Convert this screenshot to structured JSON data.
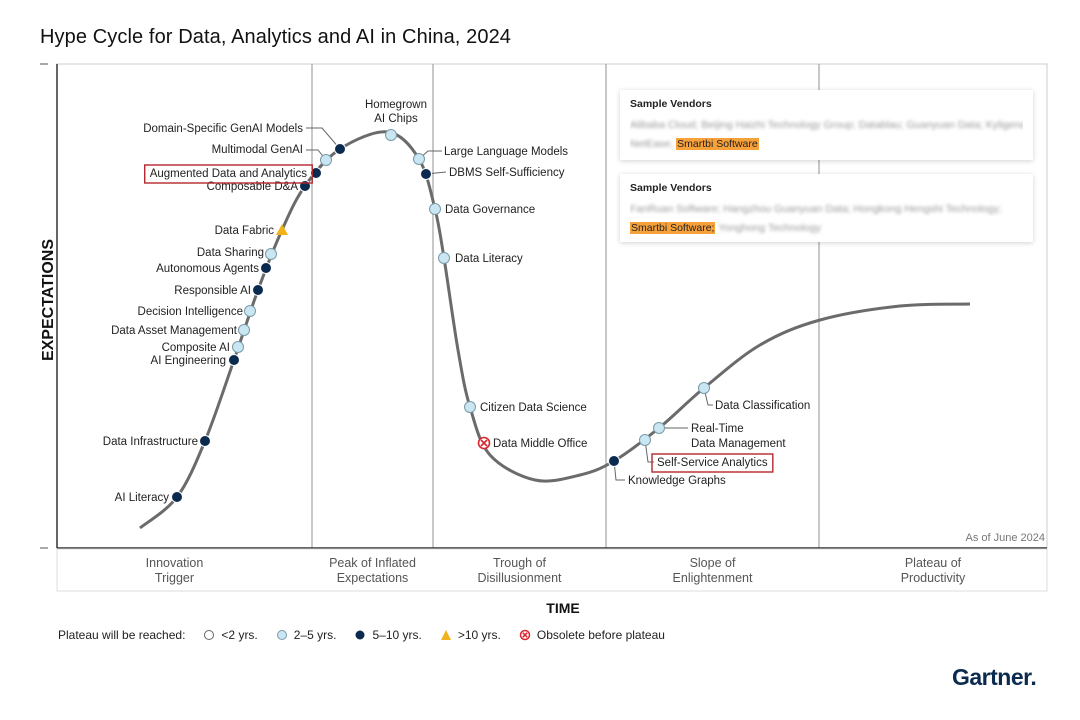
{
  "title": "Hype Cycle for Data, Analytics and AI in China, 2024",
  "y_axis_label": "EXPECTATIONS",
  "x_axis_label": "TIME",
  "as_of": "As of June 2024",
  "phases": [
    {
      "line1": "Innovation",
      "line2": "Trigger"
    },
    {
      "line1": "Peak of Inflated",
      "line2": "Expectations"
    },
    {
      "line1": "Trough of",
      "line2": "Disillusionment"
    },
    {
      "line1": "Slope of",
      "line2": "Enlightenment"
    },
    {
      "line1": "Plateau of",
      "line2": "Productivity"
    }
  ],
  "colors": {
    "lt2": "#ffffff",
    "2to5": "#c9e6f2",
    "5to10": "#0b2a4f",
    "gt10": "#f2b21b",
    "obsolete": "#d9262c",
    "highlight_box": "#b3272d",
    "vendor_highlight": "#f7a13b",
    "curve": "#666666"
  },
  "technologies": [
    {
      "name": "AI Literacy",
      "category": "5-10"
    },
    {
      "name": "Data Infrastructure",
      "category": "5-10"
    },
    {
      "name": "AI Engineering",
      "category": "5-10"
    },
    {
      "name": "Composite AI",
      "category": "2-5"
    },
    {
      "name": "Data Asset Management",
      "category": "2-5"
    },
    {
      "name": "Decision Intelligence",
      "category": "2-5"
    },
    {
      "name": "Responsible AI",
      "category": "5-10"
    },
    {
      "name": "Autonomous Agents",
      "category": "5-10"
    },
    {
      "name": "Data Sharing",
      "category": "2-5"
    },
    {
      "name": "Data Fabric",
      "category": ">10"
    },
    {
      "name": "Composable D&A",
      "category": "5-10"
    },
    {
      "name": "Augmented Data and Analytics",
      "category": "5-10",
      "highlighted": true
    },
    {
      "name": "Multimodal GenAI",
      "category": "2-5"
    },
    {
      "name": "Domain-Specific GenAI Models",
      "category": "5-10"
    },
    {
      "name": "Homegrown AI Chips",
      "category": "2-5"
    },
    {
      "name": "Large Language Models",
      "category": "2-5"
    },
    {
      "name": "DBMS Self-Sufficiency",
      "category": "5-10"
    },
    {
      "name": "Data Governance",
      "category": "2-5"
    },
    {
      "name": "Data Literacy",
      "category": "2-5"
    },
    {
      "name": "Citizen Data Science",
      "category": "2-5"
    },
    {
      "name": "Data Middle Office",
      "category": "obsolete"
    },
    {
      "name": "Knowledge Graphs",
      "category": "5-10"
    },
    {
      "name": "Self-Service Analytics",
      "category": "2-5",
      "highlighted": true
    },
    {
      "name": "Real-Time Data Management",
      "category": "2-5"
    },
    {
      "name": "Data Classification",
      "category": "2-5"
    }
  ],
  "vendor_boxes": [
    {
      "heading": "Sample Vendors",
      "blurred_1": "Alibaba Cloud; Beijing Haizhi Technology Group; Datablau; Guanyuan Data; Kyligence;",
      "blurred_2": "NetEase;",
      "highlight": "Smartbi Software",
      "after": ""
    },
    {
      "heading": "Sample Vendors",
      "blurred_1": "FanRuan Software; Hangzhou Guanyuan Data; Hongkong Hengshi Technology;",
      "blurred_2": "",
      "highlight": "Smartbi Software;",
      "after": "Yonghong Technology"
    }
  ],
  "legend": {
    "title": "Plateau will be reached:",
    "items": [
      {
        "label": "<2 yrs.",
        "category": "<2"
      },
      {
        "label": "2–5 yrs.",
        "category": "2-5"
      },
      {
        "label": "5–10 yrs.",
        "category": "5-10"
      },
      {
        "label": ">10 yrs.",
        "category": ">10"
      },
      {
        "label": "Obsolete before plateau",
        "category": "obsolete"
      }
    ]
  },
  "logo": "Gartner."
}
